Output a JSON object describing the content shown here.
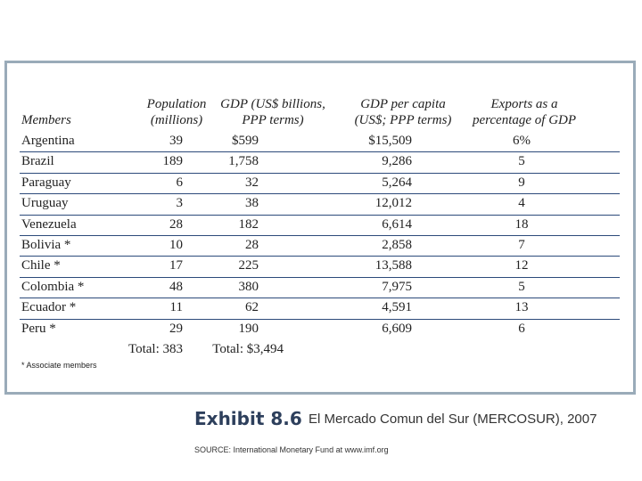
{
  "table": {
    "header": [
      "Members",
      "Population (millions)",
      "GDP (US$ billions, PPP terms)",
      "GDP per capita (US$; PPP terms)",
      "Exports as a percentage of GDP"
    ],
    "rows": [
      [
        "Argentina",
        "39",
        "$599",
        "$15,509",
        "6%"
      ],
      [
        "Brazil",
        "189",
        "1,758",
        "9,286",
        "5"
      ],
      [
        "Paraguay",
        "6",
        "32",
        "5,264",
        "9"
      ],
      [
        "Uruguay",
        "3",
        "38",
        "12,012",
        "4"
      ],
      [
        "Venezuela",
        "28",
        "182",
        "6,614",
        "18"
      ],
      [
        "Bolivia *",
        "10",
        "28",
        "2,858",
        "7"
      ],
      [
        "Chile *",
        "17",
        "225",
        "13,588",
        "12"
      ],
      [
        "Colombia *",
        "48",
        "380",
        "7,975",
        "5"
      ],
      [
        "Ecuador *",
        "11",
        "62",
        "4,591",
        "13"
      ],
      [
        "Peru *",
        "29",
        "190",
        "6,609",
        "6"
      ]
    ],
    "totals": [
      "Total: 383",
      "Total: $3,494"
    ],
    "footnote": "* Associate members"
  },
  "caption": {
    "label": "Exhibit 8.6",
    "title": "El Mercado Comun del Sur (MERCOSUR), 2007",
    "source": "SOURCE: International Monetary Fund at www.imf.org"
  }
}
